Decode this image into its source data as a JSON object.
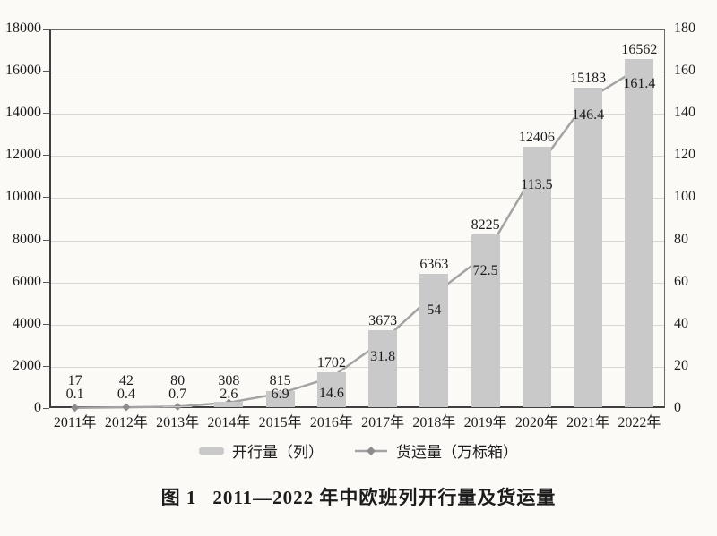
{
  "page": {
    "background": "#fcfaf6"
  },
  "chart_data": {
    "type": "bar",
    "subtype": "bar+line combo, dual axis",
    "categories": [
      "2011年",
      "2012年",
      "2013年",
      "2014年",
      "2015年",
      "2016年",
      "2017年",
      "2018年",
      "2019年",
      "2020年",
      "2021年",
      "2022年"
    ],
    "series": [
      {
        "name": "开行量（列）",
        "type": "bar",
        "axis": "left",
        "values": [
          17,
          42,
          80,
          308,
          815,
          1702,
          3673,
          6363,
          8225,
          12406,
          15183,
          16562
        ],
        "color": "#c9c9c9"
      },
      {
        "name": "货运量（万标箱）",
        "type": "line",
        "axis": "right",
        "values": [
          0.1,
          0.4,
          0.7,
          2.6,
          6.9,
          14.6,
          31.8,
          54,
          72.5,
          113.5,
          146.4,
          161.4
        ],
        "color": "#a3a3a3",
        "marker": "diamond",
        "marker_color": "#8c8c8c"
      }
    ],
    "left_axis": {
      "min": 0,
      "max": 18000,
      "step": 2000,
      "ticks": [
        "0",
        "2000",
        "4000",
        "6000",
        "8000",
        "10000",
        "12000",
        "14000",
        "16000",
        "18000"
      ]
    },
    "right_axis": {
      "min": 0,
      "max": 180,
      "step": 20,
      "ticks": [
        "0",
        "20",
        "40",
        "60",
        "80",
        "100",
        "120",
        "140",
        "160",
        "180"
      ]
    },
    "grid": true,
    "legend_position": "bottom",
    "title": "图 1　2011—2022 年中欧班列开行量及货运量"
  },
  "legend": {
    "bar_label": "开行量（列）",
    "line_label": "货运量（万标箱）"
  },
  "caption": {
    "label": "图 1",
    "title": "2011—2022 年中欧班列开行量及货运量"
  }
}
